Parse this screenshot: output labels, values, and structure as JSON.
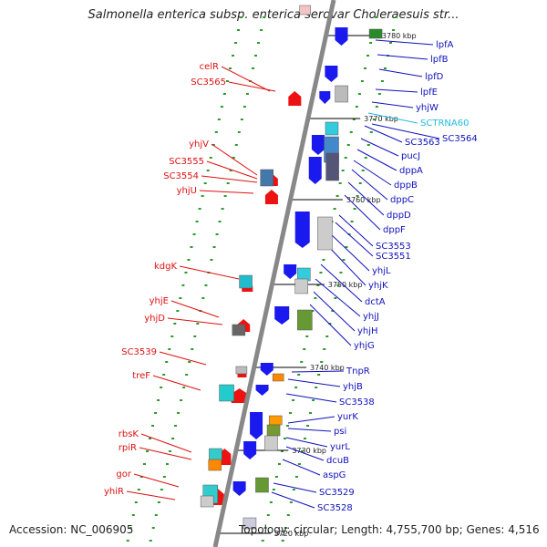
{
  "title": "Salmonella enterica subsp. enterica serovar Choleraesuis str...",
  "footer": {
    "accession": "Accession: NC_006905",
    "topology": "Topology: circular; Length: 4,755,700 bp; Genes: 4,516"
  },
  "colors": {
    "left_label": "#dd1111",
    "right_label": "#1111bb",
    "rna_label": "#22bbdd",
    "backbone": "#888888",
    "forward_arrow": "#1a1aee",
    "reverse_arrow": "#ee1111"
  },
  "ticks": [
    "3780 kbp",
    "3770 kbp",
    "3760 kbp",
    "3750 kbp",
    "3740 kbp",
    "3730 kbp",
    "3720 kbp"
  ],
  "left_genes": [
    "celR",
    "SC3565",
    "yhjV",
    "SC3555",
    "SC3554",
    "yhjU",
    "kdgK",
    "yhjE",
    "yhjD",
    "SC3539",
    "treF",
    "rbsK",
    "rpiR",
    "gor",
    "yhiR"
  ],
  "right_genes": [
    "lpfA",
    "lpfB",
    "lpfD",
    "lpfE",
    "yhjW",
    "SCTRNA60",
    "SC3563",
    "SC3564",
    "pucJ",
    "dppA",
    "dppB",
    "dppC",
    "dppD",
    "dppF",
    "SC3553",
    "SC3551",
    "yhjL",
    "yhjK",
    "dctA",
    "yhjJ",
    "yhjH",
    "yhjG",
    "TnpR",
    "yhjB",
    "SC3538",
    "yurK",
    "psi",
    "yurL",
    "dcuB",
    "aspG",
    "SC3529",
    "SC3528"
  ]
}
